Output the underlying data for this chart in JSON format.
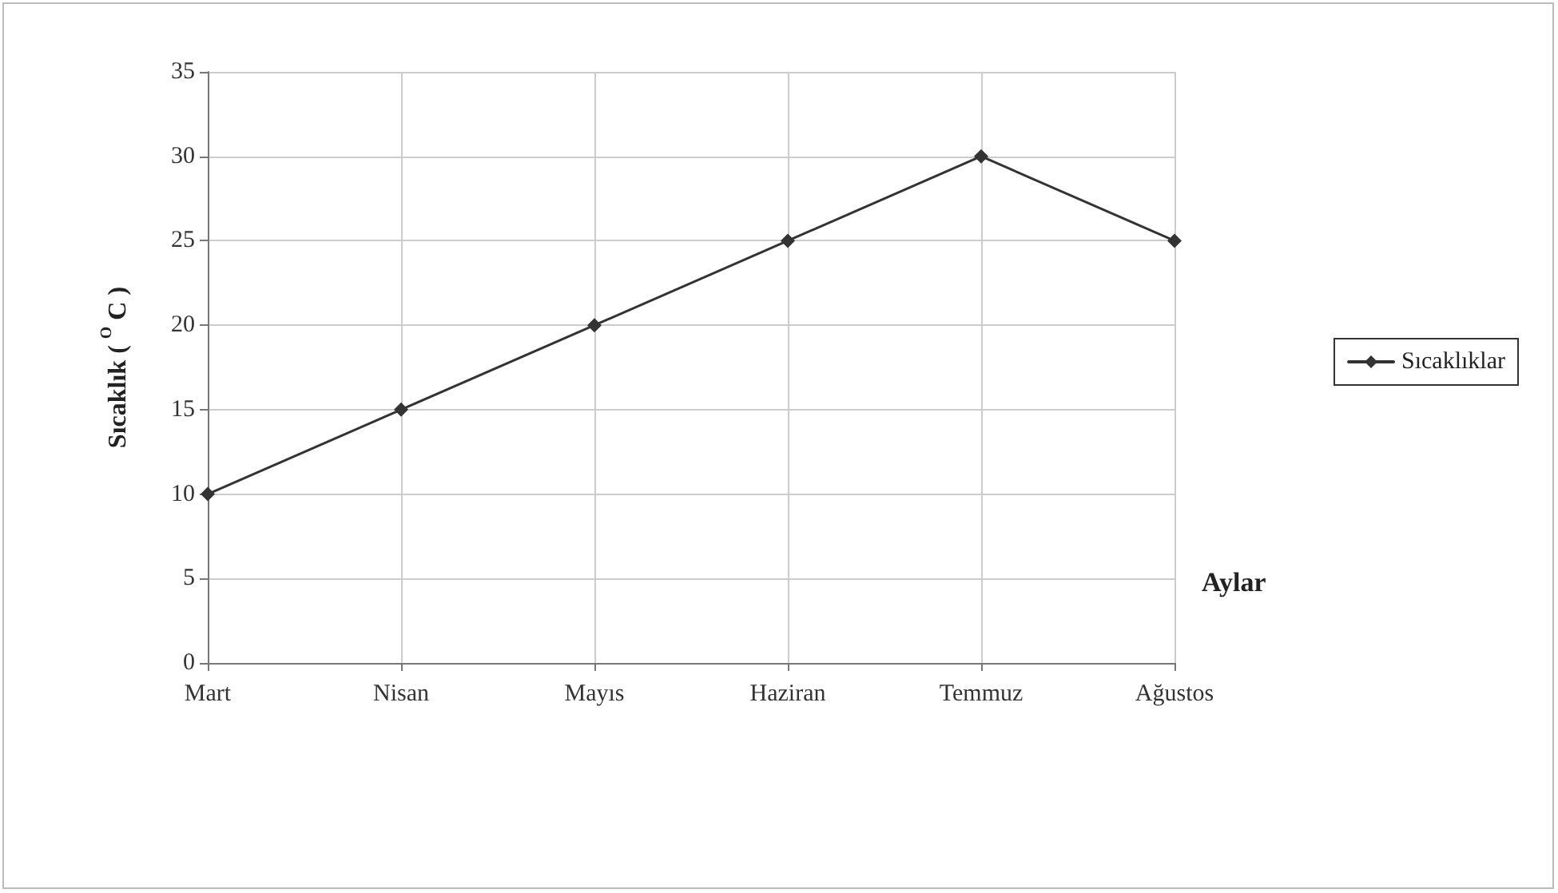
{
  "chart_data": {
    "type": "line",
    "xlabel": "Aylar",
    "ylabel": "Sıcaklık ( $^{O}$ C )",
    "categories": [
      "Mart",
      "Nisan",
      "Mayıs",
      "Haziran",
      "Temmuz",
      "Ağustos"
    ],
    "series": [
      {
        "name": "Sıcaklıklar",
        "color": "#333333",
        "values": [
          10,
          15,
          20,
          25,
          30,
          25
        ]
      }
    ],
    "ylim": [
      0,
      35
    ],
    "yticks": [
      0,
      5,
      10,
      15,
      20,
      25,
      30,
      35
    ],
    "grid": true,
    "legend": "right",
    "marker": "diamond",
    "line_style": "solid"
  }
}
